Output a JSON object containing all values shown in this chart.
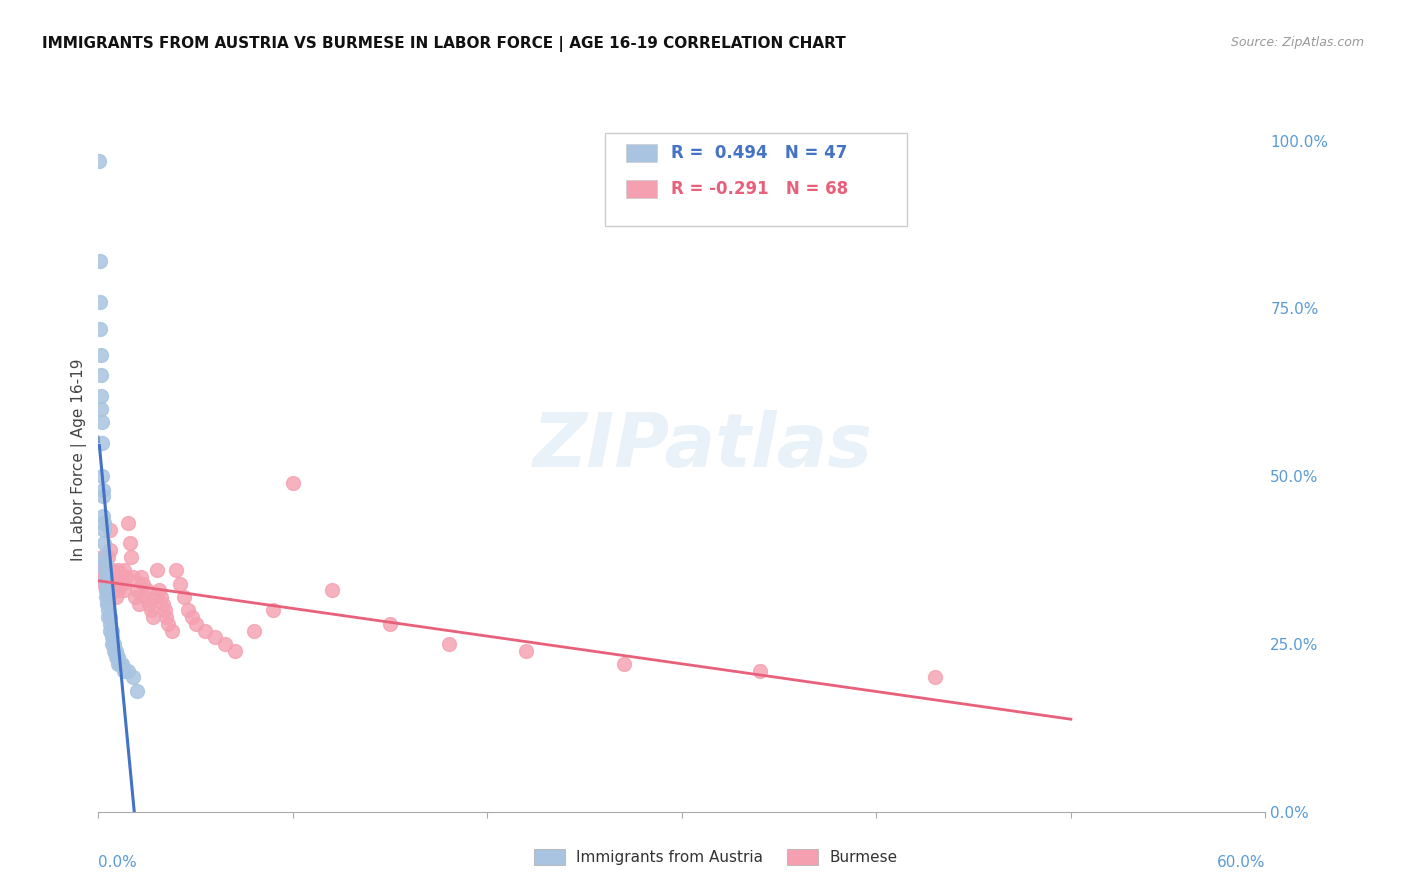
{
  "title": "IMMIGRANTS FROM AUSTRIA VS BURMESE IN LABOR FORCE | AGE 16-19 CORRELATION CHART",
  "source": "Source: ZipAtlas.com",
  "ylabel": "In Labor Force | Age 16-19",
  "austria_R": 0.494,
  "austria_N": 47,
  "burmese_R": -0.291,
  "burmese_N": 68,
  "austria_color": "#a8c4e0",
  "austria_line_color": "#4472c4",
  "burmese_color": "#f4a0b0",
  "burmese_line_color": "#e8607a",
  "austria_x": [
    0.0005,
    0.0008,
    0.001,
    0.001,
    0.0012,
    0.0013,
    0.0015,
    0.0015,
    0.002,
    0.002,
    0.002,
    0.0022,
    0.0025,
    0.0025,
    0.003,
    0.003,
    0.003,
    0.003,
    0.0035,
    0.0035,
    0.004,
    0.004,
    0.004,
    0.004,
    0.0045,
    0.0045,
    0.005,
    0.005,
    0.005,
    0.006,
    0.006,
    0.006,
    0.007,
    0.007,
    0.007,
    0.008,
    0.008,
    0.009,
    0.009,
    0.01,
    0.01,
    0.011,
    0.012,
    0.013,
    0.015,
    0.018,
    0.02
  ],
  "austria_y": [
    0.97,
    0.82,
    0.76,
    0.72,
    0.68,
    0.65,
    0.62,
    0.6,
    0.58,
    0.55,
    0.5,
    0.48,
    0.47,
    0.44,
    0.43,
    0.42,
    0.4,
    0.38,
    0.37,
    0.36,
    0.35,
    0.34,
    0.33,
    0.32,
    0.33,
    0.31,
    0.31,
    0.3,
    0.29,
    0.29,
    0.28,
    0.27,
    0.27,
    0.26,
    0.25,
    0.25,
    0.24,
    0.24,
    0.23,
    0.23,
    0.22,
    0.22,
    0.22,
    0.21,
    0.21,
    0.2,
    0.18
  ],
  "burmese_x": [
    0.001,
    0.002,
    0.002,
    0.003,
    0.003,
    0.004,
    0.004,
    0.005,
    0.005,
    0.005,
    0.006,
    0.006,
    0.007,
    0.007,
    0.008,
    0.008,
    0.009,
    0.009,
    0.01,
    0.01,
    0.011,
    0.012,
    0.013,
    0.013,
    0.014,
    0.015,
    0.016,
    0.017,
    0.018,
    0.019,
    0.02,
    0.021,
    0.022,
    0.023,
    0.024,
    0.025,
    0.026,
    0.027,
    0.028,
    0.029,
    0.03,
    0.031,
    0.032,
    0.033,
    0.034,
    0.035,
    0.036,
    0.038,
    0.04,
    0.042,
    0.044,
    0.046,
    0.048,
    0.05,
    0.055,
    0.06,
    0.065,
    0.07,
    0.08,
    0.09,
    0.1,
    0.12,
    0.15,
    0.18,
    0.22,
    0.27,
    0.34,
    0.43
  ],
  "burmese_y": [
    0.36,
    0.35,
    0.38,
    0.34,
    0.37,
    0.33,
    0.36,
    0.32,
    0.35,
    0.38,
    0.42,
    0.39,
    0.36,
    0.34,
    0.35,
    0.33,
    0.32,
    0.34,
    0.36,
    0.33,
    0.35,
    0.34,
    0.36,
    0.33,
    0.35,
    0.43,
    0.4,
    0.38,
    0.35,
    0.32,
    0.33,
    0.31,
    0.35,
    0.34,
    0.32,
    0.33,
    0.31,
    0.3,
    0.29,
    0.32,
    0.36,
    0.33,
    0.32,
    0.31,
    0.3,
    0.29,
    0.28,
    0.27,
    0.36,
    0.34,
    0.32,
    0.3,
    0.29,
    0.28,
    0.27,
    0.26,
    0.25,
    0.24,
    0.27,
    0.3,
    0.49,
    0.33,
    0.28,
    0.25,
    0.24,
    0.22,
    0.21,
    0.2
  ],
  "xlim": [
    0.0,
    0.6
  ],
  "ylim": [
    0.0,
    1.05
  ],
  "right_yticks": [
    0.0,
    0.25,
    0.5,
    0.75,
    1.0
  ],
  "right_yticklabels": [
    "0.0%",
    "25.0%",
    "50.0%",
    "75.0%",
    "100.0%"
  ],
  "background_color": "#ffffff",
  "grid_color": "#dddddd"
}
